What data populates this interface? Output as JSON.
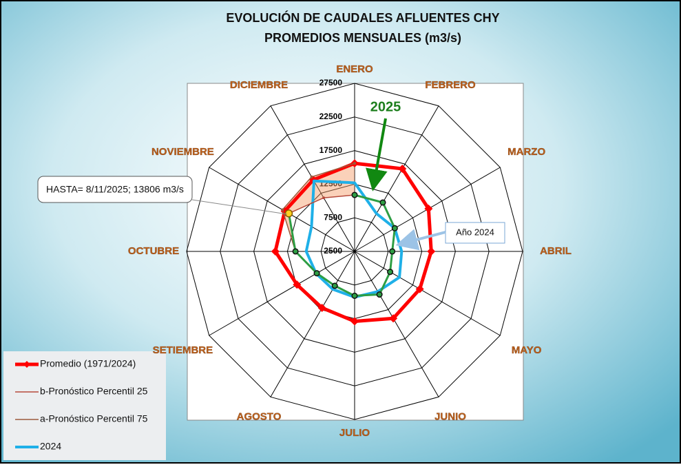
{
  "chart_data": {
    "type": "radar",
    "title": "EVOLUCIÓN DE CAUDALES AFLUENTES CHY",
    "subtitle": "PROMEDIOS MENSUALES (m3/s)",
    "categories": [
      "ENERO",
      "FEBRERO",
      "MARZO",
      "ABRIL",
      "MAYO",
      "JUNIO",
      "JULIO",
      "AGOSTO",
      "SETIEMBRE",
      "OCTUBRE",
      "NOVIEMBRE",
      "DICIEMBRE"
    ],
    "ylim": [
      2500,
      27500
    ],
    "yticks": [
      2500,
      7500,
      12500,
      17500,
      22500,
      27500
    ],
    "grid": true,
    "legend": "bottom-left",
    "series": [
      {
        "name": "Promedio (1971/2024)",
        "color": "#ff0000",
        "values": [
          15600,
          16700,
          15200,
          13900,
          13700,
          14000,
          12900,
          12200,
          12400,
          14300,
          14500,
          14800
        ]
      },
      {
        "name": "b-Pronóstico Percentil 25",
        "color": "#b5493a",
        "values": [
          10900,
          null,
          null,
          null,
          null,
          null,
          null,
          null,
          null,
          11300,
          13800,
          11700
        ]
      },
      {
        "name": "a-Pronóstico Percentil 75",
        "color": "#9c5a3c",
        "values": [
          15600,
          null,
          null,
          null,
          null,
          null,
          null,
          null,
          null,
          11300,
          14900,
          15300
        ]
      },
      {
        "name": "2024",
        "color": "#1fb0e8",
        "values": [
          12700,
          9000,
          9400,
          9500,
          10200,
          9400,
          9300,
          9000,
          9100,
          9700,
          9900,
          14600
        ]
      },
      {
        "color": "#2e9e44",
        "values": [
          10900,
          10900,
          9400,
          8100,
          8600,
          9900,
          9100,
          8400,
          9000,
          11300,
          13806,
          null
        ]
      }
    ],
    "band_color": "#f39a63",
    "annotations": [
      {
        "text": "HASTA= 8/11/2025; 13806 m3/s"
      },
      {
        "text": "Año 2024"
      },
      {
        "text": "2025",
        "color": "#1e7f1e"
      }
    ]
  }
}
